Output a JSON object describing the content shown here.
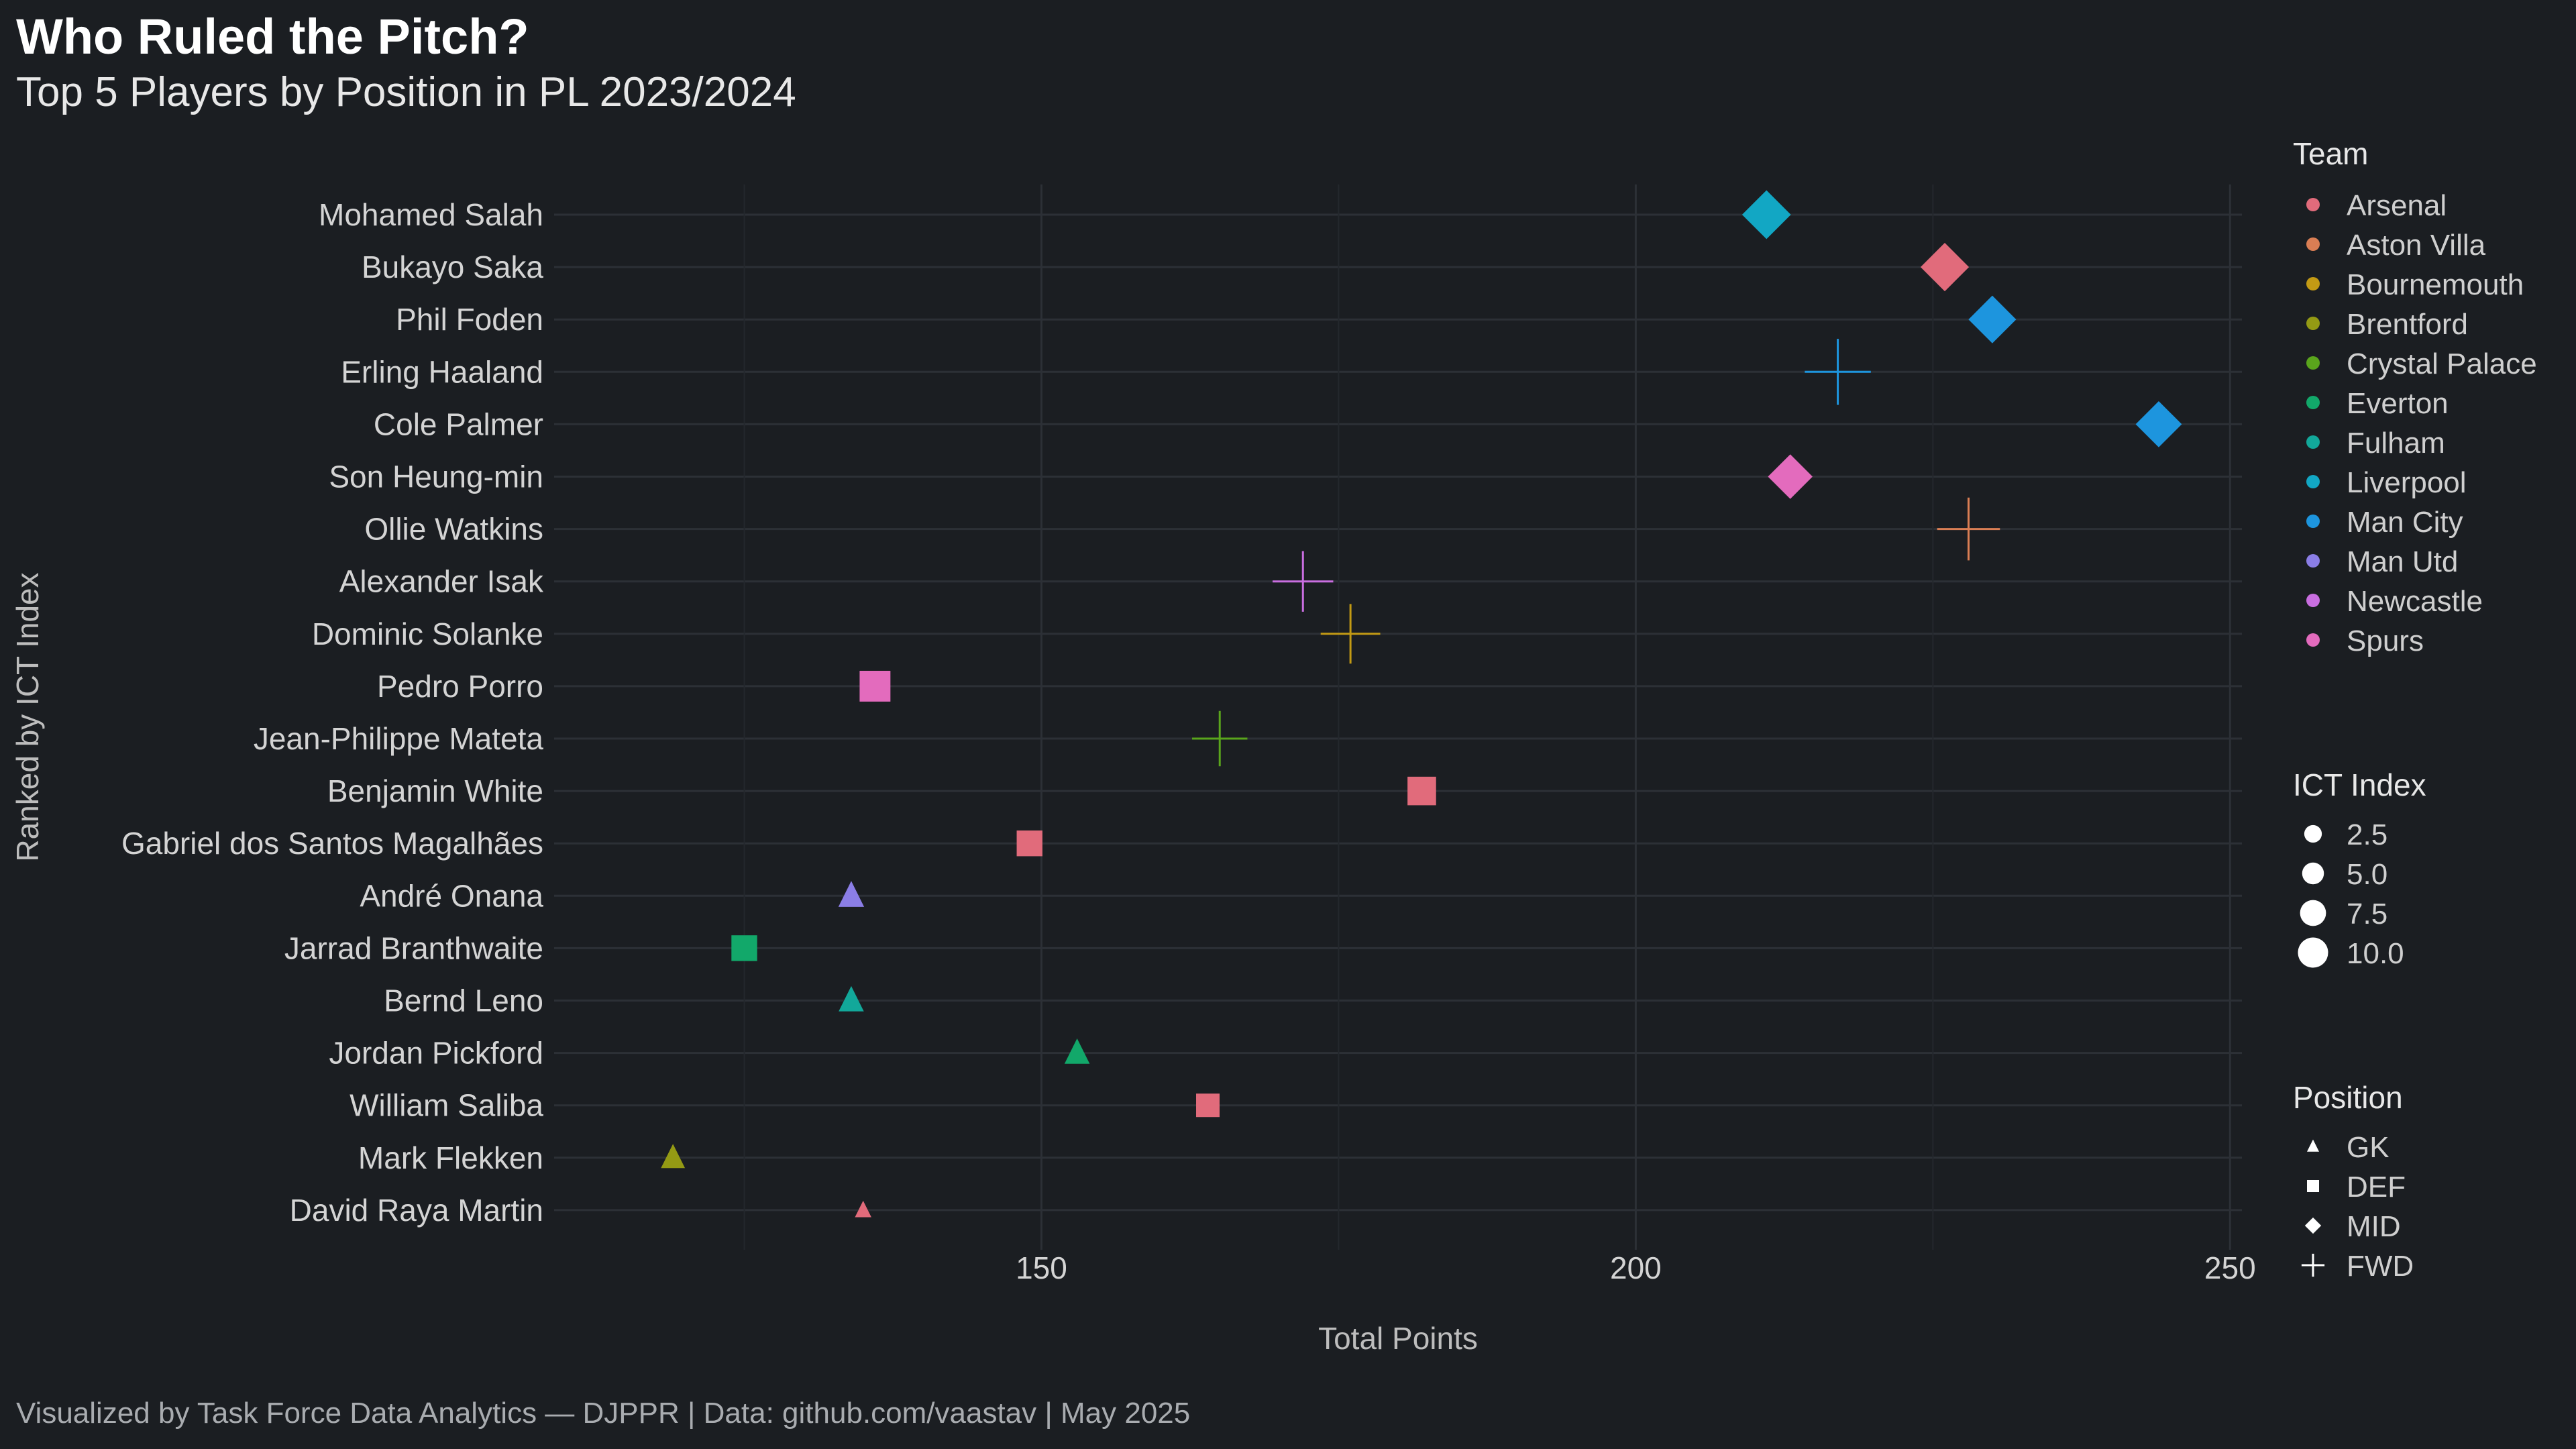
{
  "header": {
    "title": "Who Ruled the Pitch?",
    "subtitle": "Top 5 Players by Position in PL 2023/2024"
  },
  "footer": {
    "caption": "Visualized by Task Force Data Analytics — DJPPR | Data: github.com/vaastav | May 2025"
  },
  "chart_data": {
    "type": "scatter",
    "xlabel": "Total Points",
    "ylabel": "Ranked by ICT Index",
    "xlim": [
      109,
      251
    ],
    "x_ticks": [
      150,
      200,
      250
    ],
    "grid": true,
    "legend_position": "right",
    "colors": {
      "Arsenal": "#e16b7b",
      "Aston Villa": "#da7e54",
      "Bournemouth": "#c39a14",
      "Brentford": "#949a14",
      "Crystal Palace": "#5aa51c",
      "Everton": "#12a86a",
      "Fulham": "#12a89a",
      "Liverpool": "#12a7c4",
      "Man City": "#1d95de",
      "Man Utd": "#8b7ee6",
      "Newcastle": "#c96ee0",
      "Spurs": "#e36bbd"
    },
    "team_order": [
      "Arsenal",
      "Aston Villa",
      "Bournemouth",
      "Brentford",
      "Crystal Palace",
      "Everton",
      "Fulham",
      "Liverpool",
      "Man City",
      "Man Utd",
      "Newcastle",
      "Spurs"
    ],
    "size_legend": [
      {
        "label": "2.5",
        "value": 2.5
      },
      {
        "label": "5.0",
        "value": 5.0
      },
      {
        "label": "7.5",
        "value": 7.5
      },
      {
        "label": "10.0",
        "value": 10.0
      }
    ],
    "position_legend": [
      {
        "label": "GK",
        "shape": "triangle"
      },
      {
        "label": "DEF",
        "shape": "square"
      },
      {
        "label": "MID",
        "shape": "diamond"
      },
      {
        "label": "FWD",
        "shape": "plus"
      }
    ],
    "points": [
      {
        "player": "Mohamed Salah",
        "points": 211,
        "team": "Liverpool",
        "position": "MID",
        "ict": 9.5
      },
      {
        "player": "Bukayo Saka",
        "points": 226,
        "team": "Arsenal",
        "position": "MID",
        "ict": 9.4
      },
      {
        "player": "Phil Foden",
        "points": 230,
        "team": "Man City",
        "position": "MID",
        "ict": 9.2
      },
      {
        "player": "Erling Haaland",
        "points": 217,
        "team": "Man City",
        "position": "FWD",
        "ict": 9.0
      },
      {
        "player": "Cole Palmer",
        "points": 244,
        "team": "Man City",
        "position": "MID",
        "ict": 8.8
      },
      {
        "player": "Son Heung-min",
        "points": 213,
        "team": "Spurs",
        "position": "MID",
        "ict": 8.4
      },
      {
        "player": "Ollie Watkins",
        "points": 228,
        "team": "Aston Villa",
        "position": "FWD",
        "ict": 8.4
      },
      {
        "player": "Alexander Isak",
        "points": 172,
        "team": "Newcastle",
        "position": "FWD",
        "ict": 8.0
      },
      {
        "player": "Dominic Solanke",
        "points": 176,
        "team": "Bournemouth",
        "position": "FWD",
        "ict": 7.8
      },
      {
        "player": "Pedro Porro",
        "points": 136,
        "team": "Spurs",
        "position": "DEF",
        "ict": 7.6
      },
      {
        "player": "Jean-Philippe Mateta",
        "points": 165,
        "team": "Crystal Palace",
        "position": "FWD",
        "ict": 7.0
      },
      {
        "player": "Benjamin White",
        "points": 182,
        "team": "Arsenal",
        "position": "DEF",
        "ict": 6.8
      },
      {
        "player": "Gabriel dos Santos Magalhães",
        "points": 149,
        "team": "Arsenal",
        "position": "DEF",
        "ict": 5.8
      },
      {
        "player": "André Onana",
        "points": 134,
        "team": "Man Utd",
        "position": "GK",
        "ict": 5.8
      },
      {
        "player": "Jarrad Branthwaite",
        "points": 125,
        "team": "Everton",
        "position": "DEF",
        "ict": 5.8
      },
      {
        "player": "Bernd Leno",
        "points": 134,
        "team": "Fulham",
        "position": "GK",
        "ict": 5.6
      },
      {
        "player": "Jordan Pickford",
        "points": 153,
        "team": "Everton",
        "position": "GK",
        "ict": 5.6
      },
      {
        "player": "William Saliba",
        "points": 164,
        "team": "Arsenal",
        "position": "DEF",
        "ict": 5.0
      },
      {
        "player": "Mark Flekken",
        "points": 119,
        "team": "Brentford",
        "position": "GK",
        "ict": 5.2
      },
      {
        "player": "David Raya Martin",
        "points": 135,
        "team": "Arsenal",
        "position": "GK",
        "ict": 2.5
      }
    ]
  }
}
